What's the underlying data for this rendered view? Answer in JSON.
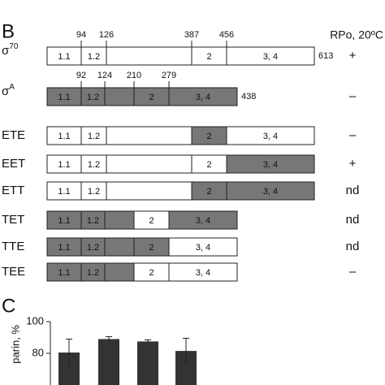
{
  "panel_b": {
    "label": "B",
    "header": "RPo, 20ºC",
    "rows": [
      {
        "name": {
          "base": "σ",
          "sup": "70"
        },
        "ticks": [
          94,
          126,
          387,
          456
        ],
        "end": 613,
        "layout": "long",
        "result": "+",
        "segments": [
          {
            "label": "1.1",
            "fill": "#ffffff"
          },
          {
            "label": "1.2",
            "fill": "#ffffff"
          },
          {
            "fill": "#ffffff"
          },
          {
            "label": "2",
            "fill": "#ffffff"
          },
          {
            "label": "3, 4",
            "fill": "#ffffff"
          }
        ]
      },
      {
        "name": {
          "base": "σ",
          "sup": "A"
        },
        "ticks": [
          92,
          124,
          210,
          279
        ],
        "end": 438,
        "layout": "short",
        "result": "–",
        "segments": [
          {
            "label": "1.1",
            "fill": "#777777"
          },
          {
            "label": "1.2",
            "fill": "#777777"
          },
          {
            "fill": "#777777"
          },
          {
            "label": "2",
            "fill": "#777777"
          },
          {
            "label": "3, 4",
            "fill": "#777777"
          }
        ]
      },
      {
        "name": {
          "base": "ETE"
        },
        "layout": "long",
        "result": "–",
        "segments": [
          {
            "label": "1.1",
            "fill": "#ffffff"
          },
          {
            "label": "1.2",
            "fill": "#ffffff"
          },
          {
            "fill": "#ffffff"
          },
          {
            "label": "2",
            "fill": "#777777"
          },
          {
            "label": "3, 4",
            "fill": "#ffffff"
          }
        ]
      },
      {
        "name": {
          "base": "EET"
        },
        "layout": "long",
        "result": "+",
        "segments": [
          {
            "label": "1.1",
            "fill": "#ffffff"
          },
          {
            "label": "1.2",
            "fill": "#ffffff"
          },
          {
            "fill": "#ffffff"
          },
          {
            "label": "2",
            "fill": "#ffffff"
          },
          {
            "label": "3, 4",
            "fill": "#777777"
          }
        ]
      },
      {
        "name": {
          "base": "ETT"
        },
        "layout": "long",
        "result": "nd",
        "segments": [
          {
            "label": "1.1",
            "fill": "#ffffff"
          },
          {
            "label": "1.2",
            "fill": "#ffffff"
          },
          {
            "fill": "#ffffff"
          },
          {
            "label": "2",
            "fill": "#777777"
          },
          {
            "label": "3, 4",
            "fill": "#777777"
          }
        ]
      },
      {
        "name": {
          "base": "TET"
        },
        "layout": "short",
        "result": "nd",
        "segments": [
          {
            "label": "1.1",
            "fill": "#777777"
          },
          {
            "label": "1.2",
            "fill": "#777777"
          },
          {
            "fill": "#777777"
          },
          {
            "label": "2",
            "fill": "#ffffff"
          },
          {
            "label": "3, 4",
            "fill": "#777777"
          }
        ]
      },
      {
        "name": {
          "base": "TTE"
        },
        "layout": "short",
        "result": "nd",
        "segments": [
          {
            "label": "1.1",
            "fill": "#777777"
          },
          {
            "label": "1.2",
            "fill": "#777777"
          },
          {
            "fill": "#777777"
          },
          {
            "label": "2",
            "fill": "#777777"
          },
          {
            "label": "3, 4",
            "fill": "#ffffff"
          }
        ]
      },
      {
        "name": {
          "base": "TEE"
        },
        "layout": "short",
        "result": "–",
        "segments": [
          {
            "label": "1.1",
            "fill": "#777777"
          },
          {
            "label": "1.2",
            "fill": "#777777"
          },
          {
            "fill": "#777777"
          },
          {
            "label": "2",
            "fill": "#ffffff"
          },
          {
            "label": "3, 4",
            "fill": "#ffffff"
          }
        ]
      }
    ]
  },
  "chart_data": {
    "type": "bar",
    "panel_label": "C",
    "y_label": "parin, %",
    "categories": [
      null,
      null,
      null,
      null
    ],
    "values": [
      80.5,
      89,
      87.5,
      81.5
    ],
    "errors": [
      8.5,
      1.5,
      1,
      8
    ],
    "color": "#333333",
    "ylim": [
      60,
      100
    ],
    "yticks": [
      80,
      100
    ]
  }
}
